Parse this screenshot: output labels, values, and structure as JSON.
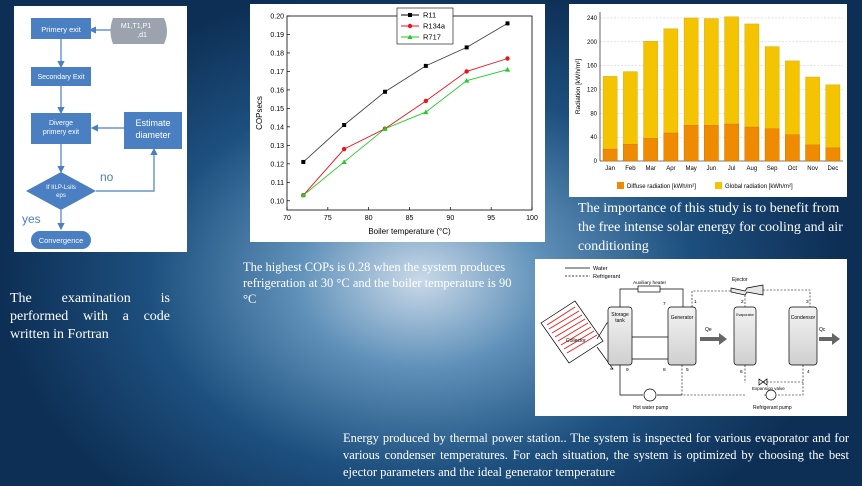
{
  "flowchart": {
    "primary_exit": "Primery exit",
    "inputs": "M1,T1,P1\n,d1",
    "secondary_exit": "Secondary Exit",
    "diverge": "Diverge\nprimery exit",
    "estimate": "Estimate\ndiameter",
    "decision": "If IILP-Lsils\neps",
    "no_label": "no",
    "yes_label": "yes",
    "convergence": "Convergence"
  },
  "cop_chart": {
    "chart_data": {
      "type": "line",
      "title": "",
      "xlabel": "Boiler temperature (°C)",
      "ylabel": "COPsecs",
      "xlim": [
        70,
        100
      ],
      "ylim": [
        0.095,
        0.2
      ],
      "xticks": [
        "70",
        "75",
        "80",
        "85",
        "90",
        "95",
        "100"
      ],
      "yticks": [
        "0.10",
        "0.11",
        "0.12",
        "0.13",
        "0.14",
        "0.15",
        "0.16",
        "0.17",
        "0.18",
        "0.19",
        "0.20"
      ],
      "x": [
        72,
        77,
        82,
        87,
        92,
        97
      ],
      "series": [
        {
          "name": "R11",
          "color": "#000000",
          "values": [
            0.121,
            0.141,
            0.159,
            0.173,
            0.183,
            0.196
          ]
        },
        {
          "name": "R134a",
          "color": "#e8141c",
          "values": [
            0.103,
            0.128,
            0.139,
            0.154,
            0.17,
            0.177
          ]
        },
        {
          "name": "R717",
          "color": "#22cc22",
          "values": [
            0.103,
            0.121,
            0.139,
            0.148,
            0.165,
            0.171
          ]
        }
      ],
      "legend": "top-left"
    }
  },
  "rad_chart": {
    "chart_data": {
      "type": "bar",
      "title": "",
      "xlabel": "",
      "ylabel": "Radiation [kWh/m²]",
      "ylim": [
        0,
        250
      ],
      "yticks": [
        "0",
        "40",
        "80",
        "120",
        "160",
        "200",
        "240"
      ],
      "categories": [
        "Jan",
        "Feb",
        "Mar",
        "Apr",
        "May",
        "Jun",
        "Jul",
        "Aug",
        "Sep",
        "Oct",
        "Nov",
        "Dec"
      ],
      "series": [
        {
          "name": "Diffuse radiation [kWh/m²]",
          "color": "#f08a00",
          "values": [
            20,
            28,
            38,
            47,
            60,
            60,
            62,
            57,
            54,
            44,
            27,
            22
          ]
        },
        {
          "name": "Global radiation [kWh/m²]",
          "color": "#f5c400",
          "values": [
            142,
            150,
            201,
            222,
            240,
            239,
            242,
            230,
            192,
            168,
            141,
            128
          ]
        }
      ],
      "grid": true,
      "legend": "bottom"
    }
  },
  "texts": {
    "fortran": "The examination is performed with a code written in Fortran",
    "cops": "The highest COPs is 0.28 when the system produces refrigeration at 30 °C and the boiler temperature is 90 °C",
    "solar": "The importance of this study is to benefit from the free intense solar energy for cooling and air conditioning",
    "energy": "Energy produced by thermal power station.. The system is inspected for various evaporator and for various condenser temperatures. For each situation, the system is optimized by choosing the best ejector parameters and the ideal generator temperature"
  },
  "schematic": {
    "legend_water": "Water",
    "legend_refrigerant": "Refrigerant",
    "auxiliary_heater": "Auxiliary heater",
    "ejector": "Ejector",
    "storage_tank": "Storage\ntank",
    "generator": "Generator",
    "evaporator": "Evaporator",
    "condenser": "Condensor",
    "collector": "Collector",
    "qe": "Qe",
    "qc": "Qc",
    "expansion_valve": "Expansion valve",
    "hot_water_pump": "Hot water pump",
    "refrigerant_pump": "Refrigerant pump",
    "n1": "1",
    "n2": "2",
    "n3": "3",
    "n4": "4",
    "n5": "5",
    "n6": "6",
    "n7": "7",
    "n8": "8",
    "n9": "9"
  }
}
